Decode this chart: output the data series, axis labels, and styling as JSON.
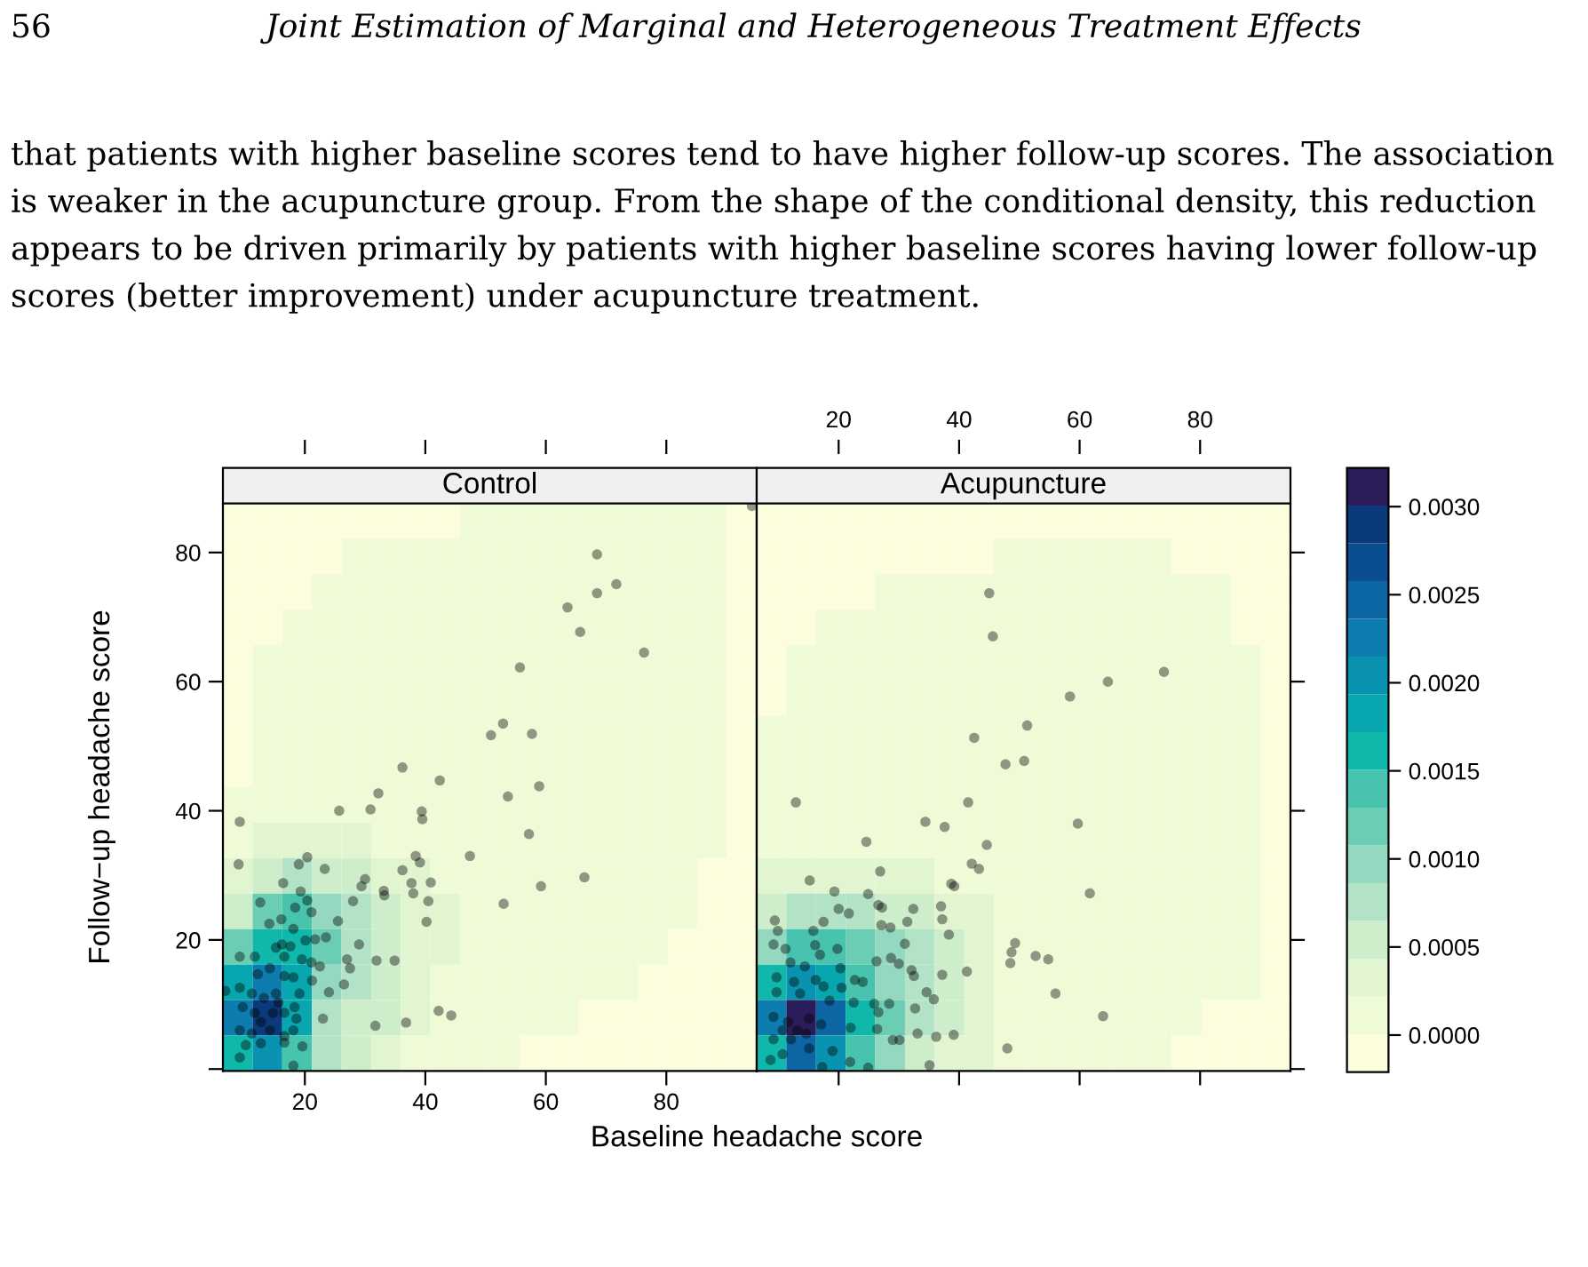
{
  "chart_data": [
    {
      "type": "heatmap",
      "title": "Control",
      "xlabel": "Baseline headache score",
      "ylabel": "Follow−up headache score",
      "annotations": [
        "56",
        "Joint Estimation of Marginal and Heterogeneous Treatment Effects",
        "that patients with higher baseline scores tend to have higher follow-up scores. The association is weaker in the acupuncture group. From the shape of the conditional density, this reduction appears to be driven primarily by patients with higher baseline scores having lower follow-up scores (better improvement) under acupuncture treatment."
      ],
      "xlim": [
        6.4,
        95
      ],
      "xticks": [
        20,
        40,
        60,
        80
      ],
      "ylim": [
        -0.3,
        87.6
      ],
      "yticks": [
        {
          "value": 0,
          "label": null
        },
        20,
        40,
        60,
        80
      ],
      "clim": [
        -0.00021,
        0.00322
      ],
      "cticks": [
        {
          "value": 0,
          "label": "0.0000"
        },
        {
          "value": 0.001,
          "label": "0.0010"
        },
        {
          "value": 0.002,
          "label": "0.0020"
        },
        {
          "value": 0.003,
          "label": "0.0030"
        }
      ],
      "colors": [
        "#fbfddd",
        "#effad7",
        "#e2f5d1",
        "#cdedcb",
        "#b3e3c6",
        "#93d8bf",
        "#6ccdb5",
        "#48c3ae",
        "#10b8ac",
        "#08a6ae",
        "#0a93b0",
        "#0d7db0",
        "#0b66a3",
        "#0a4e92",
        "#0a3a7b",
        "#2b1d5a"
      ],
      "cells": [
        [
          0,
          0,
          0,
          0,
          0,
          0,
          0,
          0,
          0.0001,
          0.0001,
          0.0001,
          0.0001,
          0.0001,
          0.0001,
          0.0001,
          0.0001,
          0.0001,
          0
        ],
        [
          0,
          0,
          0,
          0,
          0.0001,
          0.0001,
          0.0001,
          0.0001,
          0.0001,
          0.0001,
          0.0001,
          0.0001,
          0.0001,
          0.0001,
          0.0001,
          0.0001,
          0.0001,
          0
        ],
        [
          0,
          0,
          0,
          0.0001,
          0.0001,
          0.0001,
          0.0001,
          0.0001,
          0.0001,
          0.0001,
          0.0001,
          0.0001,
          0.0001,
          0.0001,
          0.0001,
          0.0001,
          0.0001,
          0
        ],
        [
          0,
          0,
          0.0001,
          0.0001,
          0.0001,
          0.0001,
          0.0001,
          0.0001,
          0.0001,
          0.0001,
          0.0001,
          0.0001,
          0.0001,
          0.0001,
          0.0001,
          0.0001,
          0.0001,
          0
        ],
        [
          0,
          0.0001,
          0.0001,
          0.0001,
          0.0001,
          0.0001,
          0.0001,
          0.0001,
          0.0001,
          0.0001,
          0.0001,
          0.0001,
          0.0001,
          0.0001,
          0.0001,
          0.0001,
          0.0001,
          0
        ],
        [
          0,
          0.0001,
          0.0001,
          0.0001,
          0.0001,
          0.0001,
          0.0001,
          0.0001,
          0.0001,
          0.0001,
          0.0001,
          0.0001,
          0.0001,
          0.0001,
          0.0001,
          0.0001,
          0.0001,
          0
        ],
        [
          0,
          0.0001,
          0.0001,
          0.0001,
          0.0001,
          0.0001,
          0.0001,
          0.0001,
          0.0001,
          0.0001,
          0.0001,
          0.0001,
          0.0001,
          0.0001,
          0.0001,
          0.0001,
          0.0001,
          0
        ],
        [
          0,
          0.0001,
          0.0001,
          0.0001,
          0.0001,
          0.0001,
          0.0001,
          0.0001,
          0.0001,
          0.0001,
          0.0001,
          0.0001,
          0.0001,
          0.0001,
          0.0001,
          0.0001,
          0.0001,
          0
        ],
        [
          0.0001,
          0.0001,
          0.0001,
          0.0001,
          0.0001,
          0.0001,
          0.0001,
          0.0001,
          0.0001,
          0.0001,
          0.0001,
          0.0001,
          0.0001,
          0.0001,
          0.0001,
          0.0001,
          0.0001,
          0
        ],
        [
          0.0001,
          0.0003,
          0.0003,
          0.0003,
          0.0003,
          0.0001,
          0.0001,
          0.0001,
          0.0001,
          0.0001,
          0.0001,
          0.0001,
          0.0001,
          0.0001,
          0.0001,
          0.0001,
          0.0001,
          0
        ],
        [
          0.0003,
          0.0005,
          0.0008,
          0.0005,
          0.0005,
          0.0003,
          0.0003,
          0.0001,
          0.0001,
          0.0001,
          0.0001,
          0.0001,
          0.0001,
          0.0001,
          0.0001,
          0.0001,
          0,
          0
        ],
        [
          0.0005,
          0.0012,
          0.0014,
          0.001,
          0.0008,
          0.0005,
          0.0003,
          0.0003,
          0.0001,
          0.0001,
          0.0001,
          0.0001,
          0.0001,
          0.0001,
          0.0001,
          0.0001,
          0,
          0
        ],
        [
          0.0012,
          0.0016,
          0.0016,
          0.0012,
          0.0008,
          0.0005,
          0.0003,
          0.0003,
          0.0001,
          0.0001,
          0.0001,
          0.0001,
          0.0001,
          0.0001,
          0.0001,
          0,
          0,
          0
        ],
        [
          0.0018,
          0.0022,
          0.0018,
          0.001,
          0.0008,
          0.0005,
          0.0003,
          0.0001,
          0.0001,
          0.0001,
          0.0001,
          0.0001,
          0.0001,
          0.0001,
          0,
          0,
          0,
          0
        ],
        [
          0.0022,
          0.0029,
          0.0018,
          0.0008,
          0.0005,
          0.0005,
          0.0003,
          0.0001,
          0.0001,
          0.0001,
          0.0001,
          0.0001,
          0,
          0,
          0,
          0,
          0,
          0
        ],
        [
          0.0016,
          0.002,
          0.0014,
          0.0008,
          0.0005,
          0.0003,
          0.0001,
          0.0001,
          0.0001,
          0.0001,
          0,
          0,
          0,
          0,
          0,
          0,
          0,
          0
        ]
      ],
      "series": [
        {
          "type": "scatter",
          "color": "#000000",
          "marker": "circle",
          "x": [
            68.5,
            71.7,
            68.5,
            63.6,
            65.7,
            76.3,
            55.7,
            52.9,
            50.9,
            57.7,
            36.2,
            42.4,
            58.9,
            53.7,
            32.2,
            30.9,
            25.7,
            39.4,
            39.5,
            9.2,
            57.2,
            9.0,
            47.4,
            20.4,
            19.0,
            23.3,
            38.4,
            39.1,
            36.2,
            16.4,
            30.0,
            29.4,
            37.7,
            40.9,
            19.3,
            33.1,
            33.2,
            38.0,
            40.5,
            12.6,
            20.4,
            21.1,
            28.0,
            53.0,
            59.2,
            66.4,
            25.5,
            40.2,
            94.2,
            18.4,
            16.1,
            14.1,
            9.2,
            11.7,
            15.2,
            16.2,
            17.6,
            20.1,
            21.7,
            23.5,
            21.1,
            22.5,
            27.0,
            27.5,
            29.0,
            31.9,
            34.9,
            14.2,
            16.6,
            18.1,
            12.2,
            6.8,
            9.2,
            11.2,
            13.2,
            15.2,
            19.1,
            24.0,
            26.5,
            9.7,
            11.7,
            12.7,
            14.7,
            16.6,
            18.6,
            9.2,
            11.2,
            14.2,
            16.6,
            18.1,
            23.0,
            10.2,
            12.7,
            16.6,
            19.6,
            9.2,
            18.1,
            31.7,
            36.8,
            42.2,
            44.3,
            18.1,
            21.2,
            19.5,
            16.6,
            18.3,
            15.6
          ],
          "values": [
            79.7,
            75.1,
            73.7,
            71.5,
            67.7,
            64.5,
            62.2,
            53.5,
            51.7,
            51.9,
            46.7,
            44.7,
            43.8,
            42.2,
            42.7,
            40.2,
            40.0,
            39.9,
            38.7,
            38.3,
            36.4,
            31.7,
            33.0,
            32.8,
            31.7,
            31.0,
            33.0,
            32.0,
            30.8,
            28.8,
            29.4,
            28.3,
            28.8,
            28.9,
            27.5,
            27.6,
            26.9,
            27.2,
            26.0,
            25.8,
            26.1,
            24.3,
            26.0,
            25.6,
            28.3,
            29.7,
            22.9,
            22.8,
            87.2,
            25.0,
            23.2,
            22.5,
            17.4,
            17.4,
            18.8,
            19.3,
            19.0,
            19.9,
            20.1,
            20.4,
            16.5,
            15.9,
            17.0,
            15.6,
            19.3,
            16.8,
            16.8,
            15.6,
            14.4,
            14.2,
            14.7,
            12.1,
            12.6,
            11.7,
            11.0,
            11.7,
            11.7,
            11.9,
            13.1,
            9.6,
            8.7,
            7.3,
            8.7,
            8.7,
            7.8,
            6.0,
            5.5,
            6.0,
            5.1,
            6.0,
            7.8,
            3.7,
            4.0,
            4.1,
            3.5,
            1.8,
            0.5,
            6.7,
            7.2,
            9.0,
            8.3,
            21.7,
            13.7,
            17.0,
            17.4,
            9.6,
            10.3
          ]
        }
      ]
    },
    {
      "type": "heatmap",
      "title": "Acupuncture",
      "tick_labels": "x",
      "xlim": [
        6.4,
        95
      ],
      "xticks": [
        20,
        40,
        60,
        80
      ],
      "ylim": [
        -0.3,
        87.6
      ],
      "yticks": [
        {
          "value": 0,
          "label": null
        },
        20,
        40,
        60,
        80
      ],
      "clim": [
        -0.00021,
        0.00322
      ],
      "cticks": [
        {
          "value": 0.0005,
          "label": "0.0005"
        },
        {
          "value": 0.0015,
          "label": "0.0015"
        },
        {
          "value": 0.0025,
          "label": "0.0025"
        }
      ],
      "colors": [
        "#fbfddd",
        "#effad7",
        "#e2f5d1",
        "#cdedcb",
        "#b3e3c6",
        "#93d8bf",
        "#6ccdb5",
        "#48c3ae",
        "#10b8ac",
        "#08a6ae",
        "#0a93b0",
        "#0d7db0",
        "#0b66a3",
        "#0a4e92",
        "#0a3a7b",
        "#2b1d5a"
      ],
      "cells": [
        [
          0,
          0,
          0,
          0,
          0,
          0,
          0,
          0,
          0,
          0,
          0,
          0,
          0,
          0,
          0,
          0,
          0,
          0
        ],
        [
          0,
          0,
          0,
          0,
          0,
          0,
          0,
          0,
          0.0001,
          0.0001,
          0.0001,
          0.0001,
          0.0001,
          0.0001,
          0,
          0,
          0,
          0
        ],
        [
          0,
          0,
          0,
          0,
          0.0001,
          0.0001,
          0.0001,
          0.0001,
          0.0001,
          0.0001,
          0.0001,
          0.0001,
          0.0001,
          0.0001,
          0.0001,
          0.0001,
          0,
          0
        ],
        [
          0,
          0,
          0.0001,
          0.0001,
          0.0001,
          0.0001,
          0.0001,
          0.0001,
          0.0001,
          0.0001,
          0.0001,
          0.0001,
          0.0001,
          0.0001,
          0.0001,
          0.0001,
          0,
          0
        ],
        [
          0,
          0.0001,
          0.0001,
          0.0001,
          0.0001,
          0.0001,
          0.0001,
          0.0001,
          0.0001,
          0.0001,
          0.0001,
          0.0001,
          0.0001,
          0.0001,
          0.0001,
          0.0001,
          0.0001,
          0
        ],
        [
          0,
          0.0001,
          0.0001,
          0.0001,
          0.0001,
          0.0001,
          0.0001,
          0.0001,
          0.0001,
          0.0001,
          0.0001,
          0.0001,
          0.0001,
          0.0001,
          0.0001,
          0.0001,
          0.0001,
          0
        ],
        [
          0.0001,
          0.0001,
          0.0001,
          0.0001,
          0.0001,
          0.0001,
          0.0001,
          0.0001,
          0.0001,
          0.0001,
          0.0001,
          0.0001,
          0.0001,
          0.0001,
          0.0001,
          0.0001,
          0.0001,
          0
        ],
        [
          0.0001,
          0.0001,
          0.0001,
          0.0001,
          0.0001,
          0.0001,
          0.0001,
          0.0001,
          0.0001,
          0.0001,
          0.0001,
          0.0001,
          0.0001,
          0.0001,
          0.0001,
          0.0001,
          0.0001,
          0
        ],
        [
          0.0001,
          0.0001,
          0.0001,
          0.0001,
          0.0001,
          0.0001,
          0.0001,
          0.0001,
          0.0001,
          0.0001,
          0.0001,
          0.0001,
          0.0001,
          0.0001,
          0.0001,
          0.0001,
          0.0001,
          0
        ],
        [
          0.0001,
          0.0001,
          0.0001,
          0.0001,
          0.0001,
          0.0001,
          0.0001,
          0.0001,
          0.0001,
          0.0001,
          0.0001,
          0.0001,
          0.0001,
          0.0001,
          0.0001,
          0.0001,
          0.0001,
          0
        ],
        [
          0.0003,
          0.0003,
          0.0003,
          0.0003,
          0.0003,
          0.0003,
          0.0001,
          0.0001,
          0.0001,
          0.0001,
          0.0001,
          0.0001,
          0.0001,
          0.0001,
          0.0001,
          0.0001,
          0.0001,
          0
        ],
        [
          0.0005,
          0.0008,
          0.0008,
          0.0008,
          0.0005,
          0.0005,
          0.0003,
          0.0003,
          0.0001,
          0.0001,
          0.0001,
          0.0001,
          0.0001,
          0.0001,
          0.0001,
          0.0001,
          0.0001,
          0
        ],
        [
          0.001,
          0.0014,
          0.0014,
          0.0012,
          0.001,
          0.0008,
          0.0005,
          0.0003,
          0.0001,
          0.0001,
          0.0001,
          0.0001,
          0.0001,
          0.0001,
          0.0001,
          0.0001,
          0.0001,
          0
        ],
        [
          0.0016,
          0.002,
          0.0018,
          0.0014,
          0.001,
          0.0008,
          0.0005,
          0.0003,
          0.0001,
          0.0001,
          0.0001,
          0.0001,
          0.0001,
          0.0001,
          0.0001,
          0.0001,
          0.0001,
          0
        ],
        [
          0.0022,
          0.0031,
          0.0025,
          0.0016,
          0.0012,
          0.0008,
          0.0005,
          0.0003,
          0.0001,
          0.0001,
          0.0001,
          0.0001,
          0.0001,
          0.0001,
          0.0001,
          0,
          0,
          0
        ],
        [
          0.0016,
          0.0025,
          0.002,
          0.0014,
          0.001,
          0.0005,
          0.0003,
          0.0003,
          0.0001,
          0.0001,
          0.0001,
          0.0001,
          0.0001,
          0.0001,
          0,
          0,
          0,
          0
        ]
      ],
      "series": [
        {
          "type": "scatter",
          "color": "#000000",
          "marker": "circle",
          "x": [
            45.0,
            45.6,
            74.0,
            64.7,
            58.4,
            51.3,
            42.5,
            47.7,
            50.8,
            12.9,
            41.5,
            34.4,
            37.6,
            59.7,
            24.6,
            44.6,
            42.1,
            43.3,
            26.9,
            38.7,
            39.2,
            15.2,
            61.7,
            19.3,
            24.9,
            26.6,
            27.2,
            32.4,
            37.0,
            20.0,
            21.7,
            17.5,
            9.4,
            9.9,
            37.2,
            31.4,
            27.1,
            28.6,
            38.3,
            15.8,
            31.0,
            9.2,
            11.2,
            16.1,
            19.8,
            49.3,
            48.7,
            48.5,
            52.7,
            54.8,
            26.3,
            28.7,
            30.0,
            16.9,
            12.0,
            14.4,
            20.3,
            32.1,
            41.3,
            9.7,
            12.6,
            16.2,
            22.7,
            24.0,
            37.2,
            32.5,
            34.6,
            35.8,
            56.0,
            9.7,
            13.6,
            17.5,
            20.5,
            18.5,
            22.5,
            25.9,
            28.4,
            26.6,
            32.7,
            63.9,
            9.2,
            11.6,
            15.1,
            17.1,
            22.0,
            26.4,
            29.0,
            33.1,
            36.2,
            39.1,
            30.1,
            9.2,
            12.1,
            15.1,
            19.0,
            8.7,
            17.3,
            21.9,
            24.9,
            35.1,
            48.0,
            13.1,
            10.7,
            14.6,
            10.7
          ],
          "values": [
            73.7,
            67.0,
            61.5,
            60.0,
            57.7,
            53.2,
            51.3,
            47.2,
            47.7,
            41.3,
            41.3,
            38.3,
            37.5,
            38.0,
            35.2,
            34.7,
            31.8,
            31.0,
            30.6,
            28.7,
            28.3,
            29.2,
            27.2,
            27.5,
            27.1,
            25.4,
            25.0,
            24.8,
            25.2,
            24.8,
            24.1,
            22.8,
            23.0,
            21.4,
            23.2,
            22.8,
            22.3,
            21.9,
            20.8,
            21.4,
            19.4,
            19.3,
            18.6,
            19.2,
            18.6,
            19.5,
            18.1,
            16.4,
            17.5,
            17.0,
            16.7,
            17.2,
            16.3,
            17.7,
            16.5,
            15.9,
            15.6,
            15.3,
            15.1,
            14.2,
            13.5,
            13.8,
            13.8,
            13.5,
            14.6,
            14.4,
            11.9,
            10.8,
            11.7,
            11.9,
            11.7,
            12.8,
            12.6,
            10.6,
            10.3,
            10.1,
            10.1,
            8.8,
            9.4,
            8.2,
            8.1,
            7.3,
            7.8,
            6.9,
            6.4,
            6.2,
            4.5,
            5.5,
            5.0,
            5.3,
            4.5,
            4.6,
            4.6,
            3.2,
            2.8,
            1.4,
            0.3,
            1.1,
            0.2,
            0.6,
            3.2,
            6.0,
            6.0,
            5.5,
            2.3
          ]
        }
      ]
    }
  ]
}
